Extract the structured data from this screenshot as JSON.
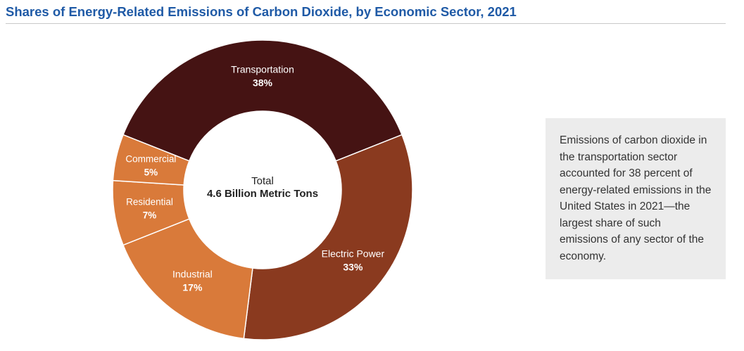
{
  "title": "Shares of Energy-Related Emissions of Carbon Dioxide, by Economic Sector, 2021",
  "note": "Emissions of carbon dioxide in the transportation sector accounted for 38 percent of energy-related emissions in the United States in 2021—the largest share of such emissions of any sector of the economy.",
  "chart_data": {
    "type": "pie",
    "style": "donut",
    "center_label": {
      "line1": "Total",
      "line2": "4.6 Billion Metric Tons"
    },
    "slices": [
      {
        "label": "Transportation",
        "value": 38,
        "value_label": "38%",
        "color": "#451313"
      },
      {
        "label": "Electric Power",
        "value": 33,
        "value_label": "33%",
        "color": "#8a3a1f"
      },
      {
        "label": "Industrial",
        "value": 17,
        "value_label": "17%",
        "color": "#d97a3a"
      },
      {
        "label": "Residential",
        "value": 7,
        "value_label": "7%",
        "color": "#d97a3a"
      },
      {
        "label": "Commercial",
        "value": 5,
        "value_label": "5%",
        "color": "#d97a3a"
      }
    ],
    "legend": "none"
  }
}
